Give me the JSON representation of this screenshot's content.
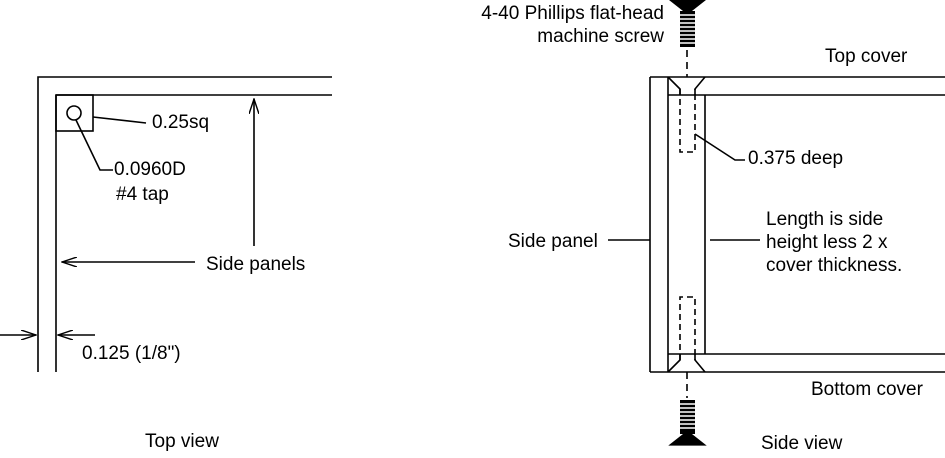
{
  "top_view": {
    "caption": "Top view",
    "label_square": "0.25sq",
    "label_hole_line1": "0.0960D",
    "label_hole_line2": "#4 tap",
    "label_side_panels": "Side panels",
    "label_thickness": "0.125 (1/8\")"
  },
  "side_view": {
    "caption": "Side view",
    "screw_line1": "4-40 Phillips flat-head",
    "screw_line2": "machine screw",
    "top_cover": "Top cover",
    "bottom_cover": "Bottom cover",
    "depth": "0.375 deep",
    "side_panel": "Side panel",
    "length_line1": "Length is side",
    "length_line2": "height less 2 x",
    "length_line3": "cover thickness."
  },
  "colors": {
    "line": "#000000",
    "background": "#ffffff"
  }
}
